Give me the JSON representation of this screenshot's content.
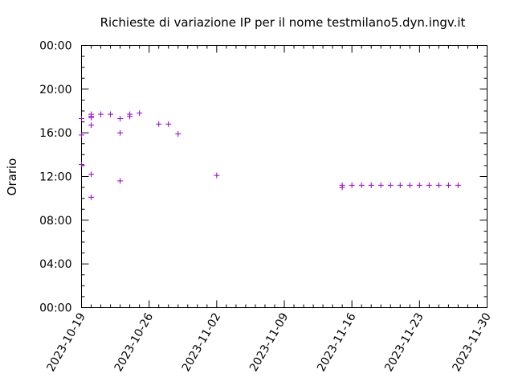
{
  "chart_data": {
    "type": "scatter",
    "title": "Richieste di variazione IP per il nome testmilano5.dyn.ingv.it",
    "xlabel": "",
    "ylabel": "Orario",
    "x_axis": {
      "type": "date",
      "range": [
        "2023-10-19",
        "2023-11-30"
      ],
      "tick_labels": [
        "2023-10-19",
        "2023-10-26",
        "2023-11-02",
        "2023-11-09",
        "2023-11-16",
        "2023-11-23",
        "2023-11-30"
      ]
    },
    "y_axis": {
      "type": "time",
      "range": [
        "00:00",
        "24:00"
      ],
      "tick_values": [
        0,
        4,
        8,
        12,
        16,
        20,
        24
      ],
      "tick_labels": [
        "00:00",
        "04:00",
        "08:00",
        "12:00",
        "16:00",
        "20:00",
        "00:00"
      ]
    },
    "grid": false,
    "legend": "none",
    "marker": "+",
    "color": "#9400d3",
    "points": [
      {
        "x": "2023-10-19",
        "y": 17.3
      },
      {
        "x": "2023-10-19",
        "y": 15.8
      },
      {
        "x": "2023-10-19",
        "y": 13.1
      },
      {
        "x": "2023-10-20",
        "y": 17.7
      },
      {
        "x": "2023-10-20",
        "y": 17.5
      },
      {
        "x": "2023-10-20",
        "y": 17.4
      },
      {
        "x": "2023-10-20",
        "y": 16.7
      },
      {
        "x": "2023-10-20",
        "y": 12.2
      },
      {
        "x": "2023-10-20",
        "y": 10.1
      },
      {
        "x": "2023-10-21",
        "y": 17.7
      },
      {
        "x": "2023-10-22",
        "y": 17.7
      },
      {
        "x": "2023-10-23",
        "y": 17.3
      },
      {
        "x": "2023-10-23",
        "y": 16.0
      },
      {
        "x": "2023-10-23",
        "y": 11.6
      },
      {
        "x": "2023-10-24",
        "y": 17.7
      },
      {
        "x": "2023-10-24",
        "y": 17.5
      },
      {
        "x": "2023-10-25",
        "y": 17.8
      },
      {
        "x": "2023-10-27",
        "y": 16.8
      },
      {
        "x": "2023-10-28",
        "y": 16.8
      },
      {
        "x": "2023-10-29",
        "y": 15.9
      },
      {
        "x": "2023-11-02",
        "y": 12.1
      },
      {
        "x": "2023-11-15",
        "y": 11.2
      },
      {
        "x": "2023-11-15",
        "y": 11.0
      },
      {
        "x": "2023-11-16",
        "y": 11.2
      },
      {
        "x": "2023-11-17",
        "y": 11.2
      },
      {
        "x": "2023-11-18",
        "y": 11.2
      },
      {
        "x": "2023-11-19",
        "y": 11.2
      },
      {
        "x": "2023-11-20",
        "y": 11.2
      },
      {
        "x": "2023-11-21",
        "y": 11.2
      },
      {
        "x": "2023-11-22",
        "y": 11.2
      },
      {
        "x": "2023-11-23",
        "y": 11.2
      },
      {
        "x": "2023-11-24",
        "y": 11.2
      },
      {
        "x": "2023-11-25",
        "y": 11.2
      },
      {
        "x": "2023-11-26",
        "y": 11.2
      },
      {
        "x": "2023-11-27",
        "y": 11.2
      }
    ]
  }
}
